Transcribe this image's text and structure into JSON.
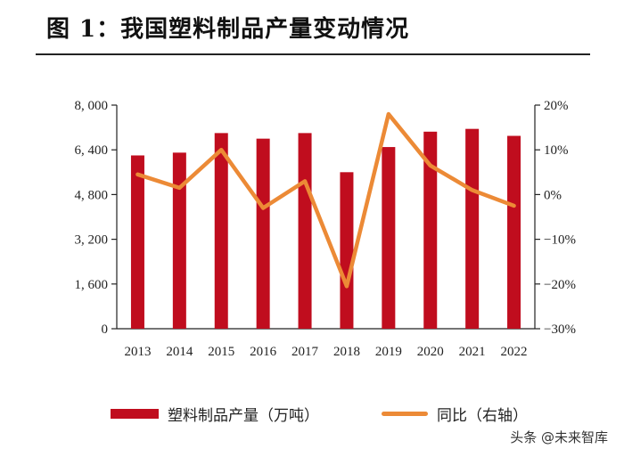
{
  "title": "图 1：我国塑料制品产量变动情况",
  "watermark": "头条 @未来智库",
  "legend": {
    "bar_label": "塑料制品产量（万吨）",
    "line_label": "同比（右轴）"
  },
  "colors": {
    "bar": "#c00d1e",
    "line": "#ec8a36",
    "axis": "#222222"
  },
  "chart_data": {
    "type": "bar+line",
    "categories": [
      "2013",
      "2014",
      "2015",
      "2016",
      "2017",
      "2018",
      "2019",
      "2020",
      "2021",
      "2022"
    ],
    "series": [
      {
        "name": "塑料制品产量（万吨）",
        "type": "bar",
        "axis": "left",
        "values": [
          6200,
          6300,
          7000,
          6800,
          7000,
          5600,
          6500,
          7050,
          7150,
          6900
        ]
      },
      {
        "name": "同比（右轴）",
        "type": "line",
        "axis": "right",
        "values": [
          4.5,
          1.5,
          10.0,
          -3.0,
          3.0,
          -20.5,
          18.0,
          6.5,
          1.0,
          -2.5
        ]
      }
    ],
    "y_left": {
      "range": [
        0,
        8000
      ],
      "ticks": [
        0,
        1600,
        3200,
        4800,
        6400,
        8000
      ],
      "tick_labels": [
        "0",
        "1, 600",
        "3, 200",
        "4, 800",
        "6, 400",
        "8, 000"
      ]
    },
    "y_right": {
      "range": [
        -30,
        20
      ],
      "ticks": [
        -30,
        -20,
        -10,
        0,
        10,
        20
      ],
      "tick_labels": [
        "−30%",
        "−20%",
        "−10%",
        "0%",
        "10%",
        "20%"
      ]
    },
    "grid": false,
    "legend_position": "bottom"
  }
}
